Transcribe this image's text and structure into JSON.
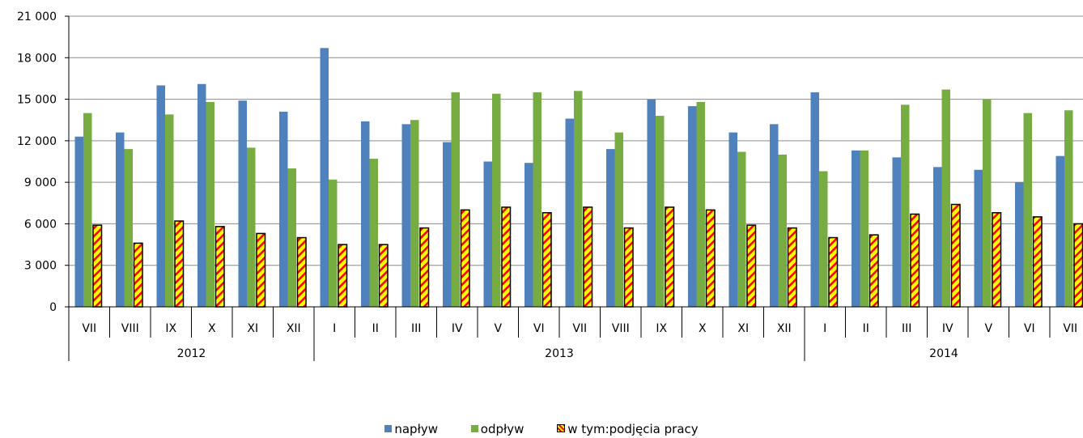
{
  "chart_data": {
    "type": "bar",
    "ylim": [
      0,
      21000
    ],
    "yticks": [
      0,
      3000,
      6000,
      9000,
      12000,
      15000,
      18000,
      21000
    ],
    "ytick_labels": [
      "0",
      "3 000",
      "6 000",
      "9 000",
      "12 000",
      "15 000",
      "18 000",
      "21 000"
    ],
    "categories": [
      "VII",
      "VIII",
      "IX",
      "X",
      "XI",
      "XII",
      "I",
      "II",
      "III",
      "IV",
      "V",
      "VI",
      "VII",
      "VIII",
      "IX",
      "X",
      "XI",
      "XII",
      "I",
      "II",
      "III",
      "IV",
      "V",
      "VI",
      "VII"
    ],
    "years": [
      {
        "label": "2012",
        "count": 6
      },
      {
        "label": "2013",
        "count": 12
      },
      {
        "label": "2014",
        "count": 7
      }
    ],
    "series": [
      {
        "name": "napływ",
        "color": "#4F81BD",
        "style": "solid",
        "values": [
          12300,
          12600,
          16000,
          16100,
          14900,
          14100,
          18700,
          13400,
          13200,
          11900,
          10500,
          10400,
          13600,
          11400,
          15000,
          14500,
          12600,
          13200,
          15500,
          11300,
          10800,
          10100,
          9900,
          9000,
          10900
        ]
      },
      {
        "name": "odpływ",
        "color": "#77AC43",
        "style": "solid",
        "values": [
          14000,
          11400,
          13900,
          14800,
          11500,
          10000,
          9200,
          10700,
          13500,
          15500,
          15400,
          15500,
          15600,
          12600,
          13800,
          14800,
          11200,
          11000,
          9800,
          11300,
          14600,
          15700,
          15000,
          14000,
          14200
        ]
      },
      {
        "name": "w tym:podjęcia pracy",
        "color": "#FFFF00",
        "accent": "#FF0000",
        "style": "hatched",
        "values": [
          5900,
          4600,
          6200,
          5800,
          5300,
          5000,
          4500,
          4500,
          5700,
          7000,
          7200,
          6800,
          7200,
          5700,
          7200,
          7000,
          5900,
          5700,
          5000,
          5200,
          6700,
          7400,
          6800,
          6500,
          6000
        ]
      }
    ],
    "grid": true,
    "legend_position": "bottom",
    "xlabel": "",
    "ylabel": ""
  }
}
